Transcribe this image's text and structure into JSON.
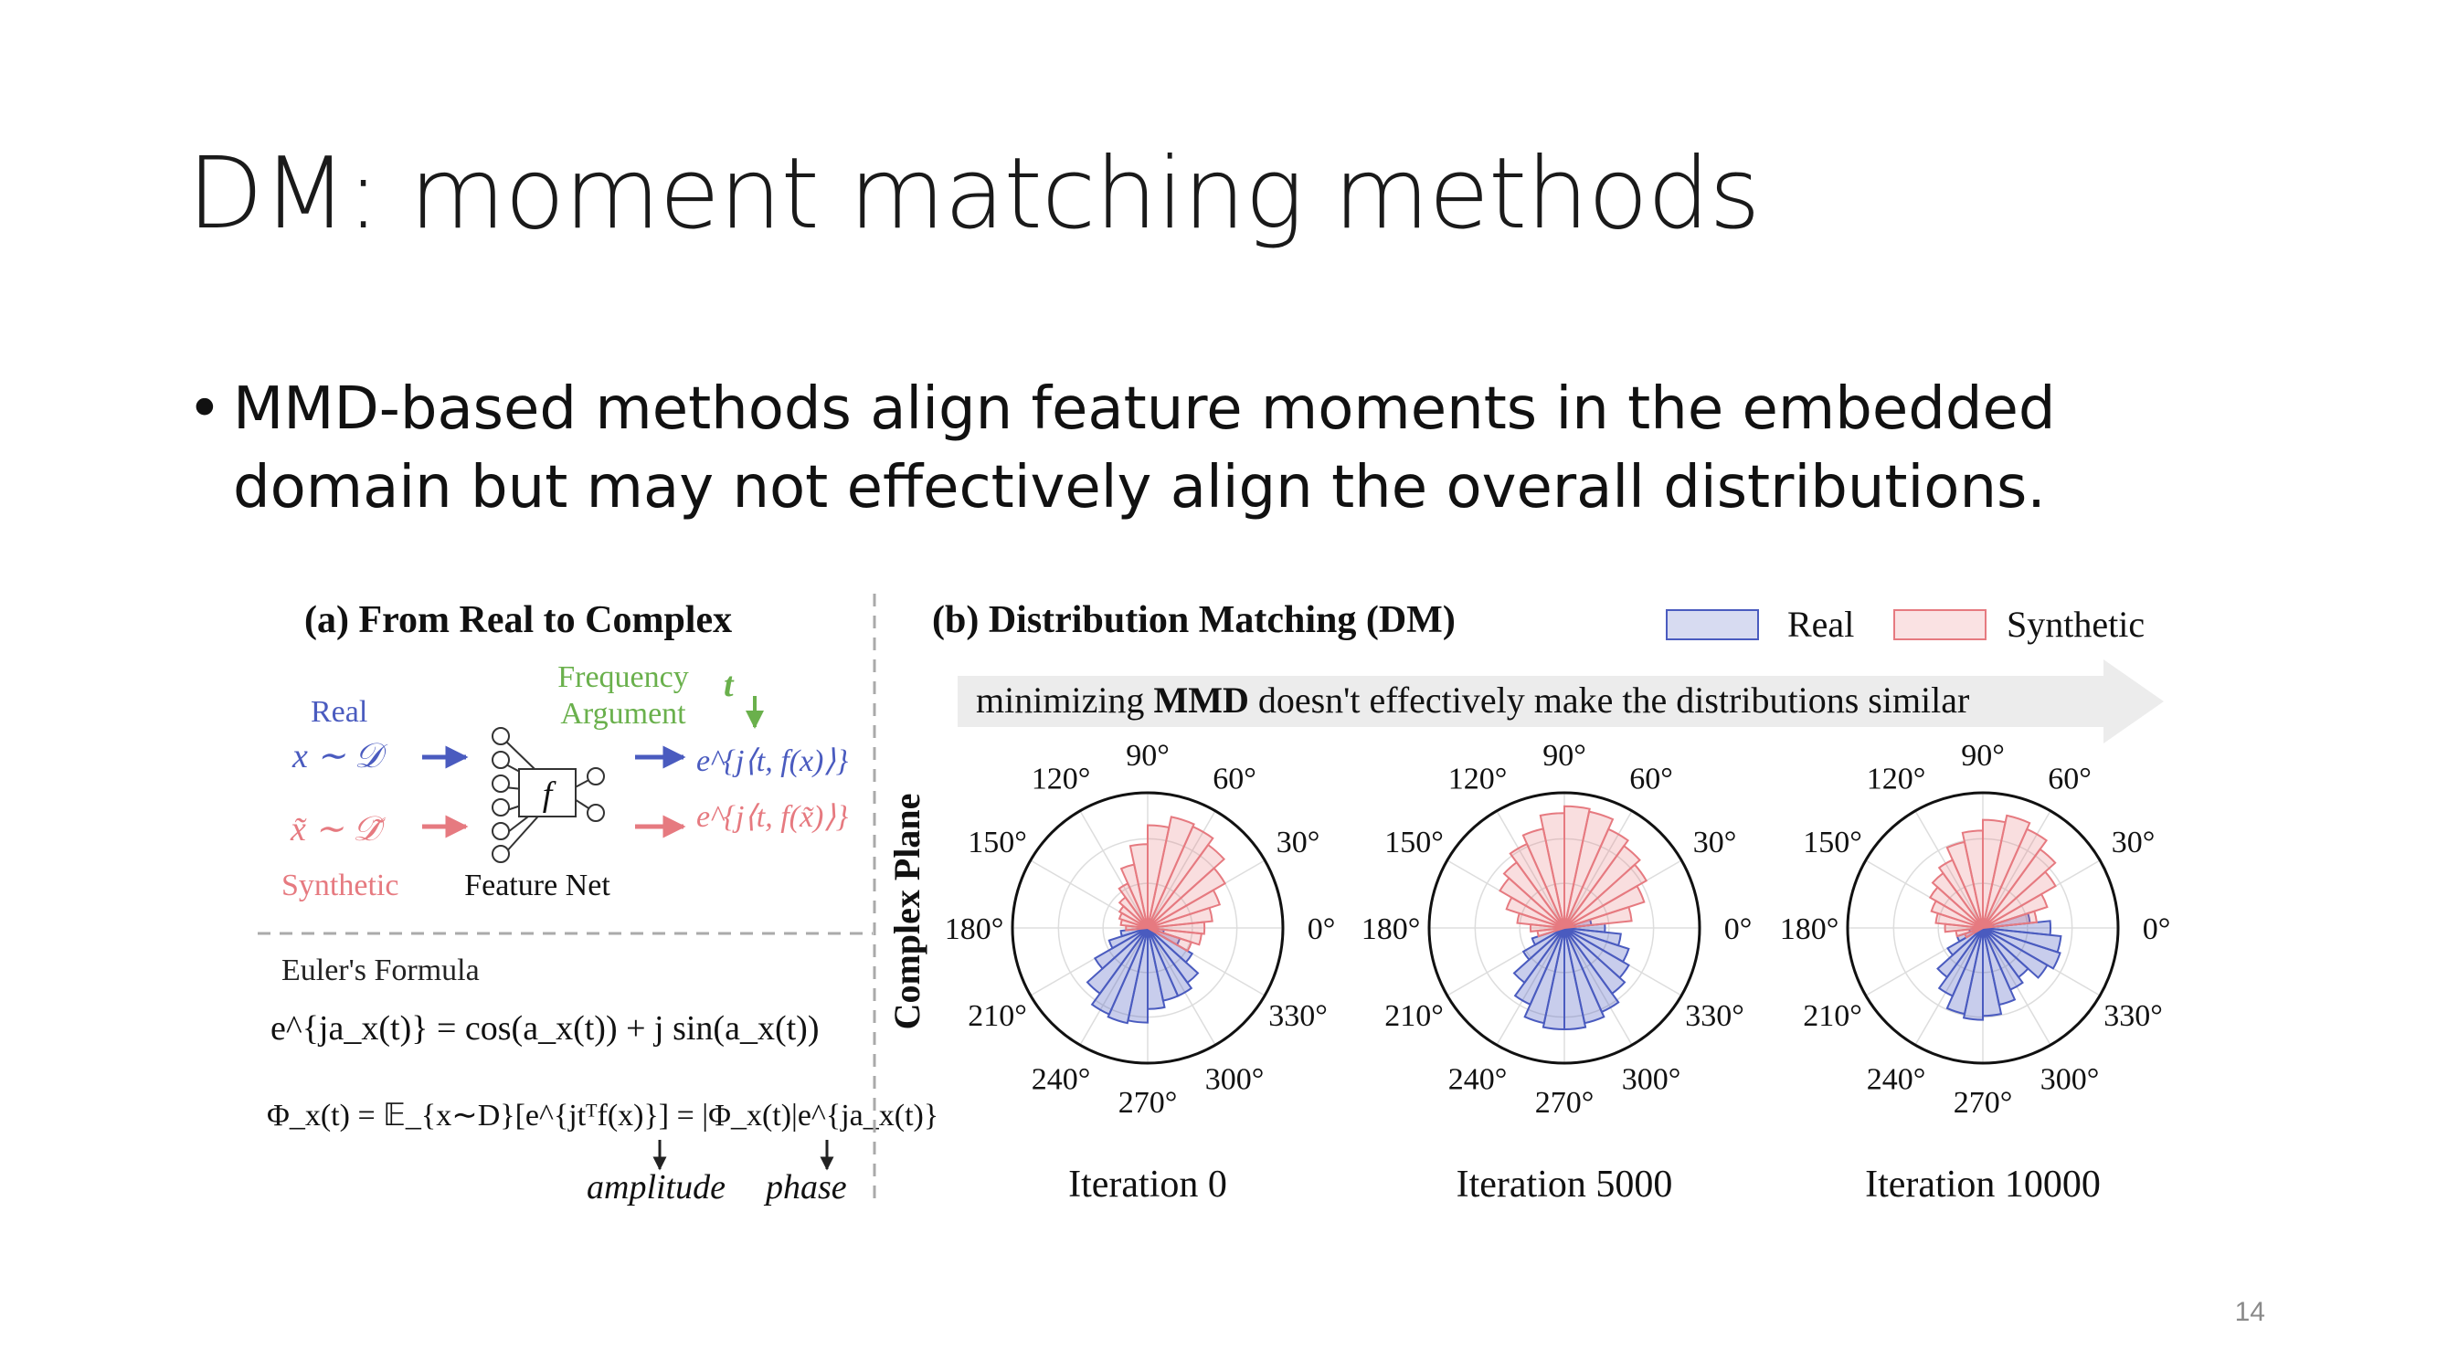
{
  "slide": {
    "title": "DM: moment matching methods",
    "bullet": "MMD-based methods align feature moments in the embedded domain but may not effectively align the overall distributions.",
    "page_number": "14"
  },
  "colors": {
    "real": "#4a5bbf",
    "synthetic": "#e67a80",
    "frequency": "#6ab04c"
  },
  "panel_a": {
    "title": "(a) From Real to Complex",
    "real_label": "Real",
    "real_sample": "x ∼ 𝒟",
    "synthetic_sample": "x̃ ∼ 𝒟̃",
    "synthetic_label": "Synthetic",
    "frequency_label_1": "Frequency",
    "frequency_label_2": "Argument",
    "t_symbol": "t",
    "f_symbol": "f",
    "feature_net_label": "Feature Net",
    "real_output": "e^{j⟨t, f(x)⟩}",
    "synthetic_output": "e^{j⟨t, f(x̃)⟩}",
    "euler_title": "Euler's Formula",
    "euler_formula": "e^{ja_x(t)} = cos(a_x(t)) + j sin(a_x(t))",
    "cf_formula": "Φ_x(t) = 𝔼_{x∼D}[e^{jtᵀf(x)}] = |Φ_x(t)|e^{ja_x(t)}",
    "amplitude_label": "amplitude",
    "phase_label": "phase"
  },
  "panel_b": {
    "title": "(b) Distribution Matching (DM)",
    "legend_real": "Real",
    "legend_synthetic": "Synthetic",
    "arrow_prefix": "minimizing ",
    "arrow_bold": "MMD",
    "arrow_suffix": " doesn't effectively make the distributions similar",
    "y_label": "Complex Plane",
    "angle_labels": [
      "0°",
      "30°",
      "60°",
      "90°",
      "120°",
      "150°",
      "180°",
      "210°",
      "240°",
      "270°",
      "300°",
      "330°"
    ]
  },
  "chart_data": [
    {
      "type": "polar-bar",
      "title": "Iteration 0",
      "bin_width_deg": 12,
      "series": [
        {
          "name": "Real",
          "bins": [
            {
              "angle": 192,
              "r": 0.2
            },
            {
              "angle": 204,
              "r": 0.3
            },
            {
              "angle": 216,
              "r": 0.45
            },
            {
              "angle": 228,
              "r": 0.6
            },
            {
              "angle": 240,
              "r": 0.7
            },
            {
              "angle": 252,
              "r": 0.72
            },
            {
              "angle": 264,
              "r": 0.7
            },
            {
              "angle": 276,
              "r": 0.6
            },
            {
              "angle": 288,
              "r": 0.55
            },
            {
              "angle": 300,
              "r": 0.55
            },
            {
              "angle": 312,
              "r": 0.5
            },
            {
              "angle": 324,
              "r": 0.38
            },
            {
              "angle": 336,
              "r": 0.25
            },
            {
              "angle": 348,
              "r": 0.12
            }
          ]
        },
        {
          "name": "Synthetic",
          "bins": [
            {
              "angle": 0,
              "r": 0.42
            },
            {
              "angle": 12,
              "r": 0.48
            },
            {
              "angle": 24,
              "r": 0.56
            },
            {
              "angle": 36,
              "r": 0.66
            },
            {
              "angle": 48,
              "r": 0.76
            },
            {
              "angle": 60,
              "r": 0.82
            },
            {
              "angle": 72,
              "r": 0.84
            },
            {
              "angle": 84,
              "r": 0.76
            },
            {
              "angle": 96,
              "r": 0.62
            },
            {
              "angle": 108,
              "r": 0.48
            },
            {
              "angle": 120,
              "r": 0.36
            },
            {
              "angle": 132,
              "r": 0.28
            },
            {
              "angle": 144,
              "r": 0.24
            },
            {
              "angle": 156,
              "r": 0.22
            },
            {
              "angle": 168,
              "r": 0.2
            },
            {
              "angle": 180,
              "r": 0.16
            },
            {
              "angle": 348,
              "r": 0.4
            },
            {
              "angle": 336,
              "r": 0.34
            }
          ]
        }
      ]
    },
    {
      "type": "polar-bar",
      "title": "Iteration 5000",
      "bin_width_deg": 12,
      "series": [
        {
          "name": "Real",
          "bins": [
            {
              "angle": 204,
              "r": 0.25
            },
            {
              "angle": 216,
              "r": 0.35
            },
            {
              "angle": 228,
              "r": 0.5
            },
            {
              "angle": 240,
              "r": 0.62
            },
            {
              "angle": 252,
              "r": 0.72
            },
            {
              "angle": 264,
              "r": 0.75
            },
            {
              "angle": 276,
              "r": 0.75
            },
            {
              "angle": 288,
              "r": 0.72
            },
            {
              "angle": 300,
              "r": 0.68
            },
            {
              "angle": 312,
              "r": 0.6
            },
            {
              "angle": 324,
              "r": 0.55
            },
            {
              "angle": 336,
              "r": 0.5
            },
            {
              "angle": 348,
              "r": 0.42
            },
            {
              "angle": 0,
              "r": 0.3
            },
            {
              "angle": 12,
              "r": 0.2
            }
          ]
        },
        {
          "name": "Synthetic",
          "bins": [
            {
              "angle": 12,
              "r": 0.5
            },
            {
              "angle": 24,
              "r": 0.62
            },
            {
              "angle": 36,
              "r": 0.7
            },
            {
              "angle": 48,
              "r": 0.75
            },
            {
              "angle": 60,
              "r": 0.8
            },
            {
              "angle": 72,
              "r": 0.88
            },
            {
              "angle": 84,
              "r": 0.9
            },
            {
              "angle": 96,
              "r": 0.85
            },
            {
              "angle": 108,
              "r": 0.75
            },
            {
              "angle": 120,
              "r": 0.68
            },
            {
              "angle": 132,
              "r": 0.6
            },
            {
              "angle": 144,
              "r": 0.55
            },
            {
              "angle": 156,
              "r": 0.45
            },
            {
              "angle": 168,
              "r": 0.35
            },
            {
              "angle": 180,
              "r": 0.25
            },
            {
              "angle": 192,
              "r": 0.2
            }
          ]
        }
      ]
    },
    {
      "type": "polar-bar",
      "title": "Iteration 10000",
      "bin_width_deg": 12,
      "series": [
        {
          "name": "Real",
          "bins": [
            {
              "angle": 192,
              "r": 0.1
            },
            {
              "angle": 204,
              "r": 0.2
            },
            {
              "angle": 216,
              "r": 0.3
            },
            {
              "angle": 228,
              "r": 0.45
            },
            {
              "angle": 240,
              "r": 0.55
            },
            {
              "angle": 252,
              "r": 0.65
            },
            {
              "angle": 264,
              "r": 0.68
            },
            {
              "angle": 276,
              "r": 0.65
            },
            {
              "angle": 288,
              "r": 0.58
            },
            {
              "angle": 300,
              "r": 0.5
            },
            {
              "angle": 312,
              "r": 0.45
            },
            {
              "angle": 324,
              "r": 0.55
            },
            {
              "angle": 336,
              "r": 0.6
            },
            {
              "angle": 348,
              "r": 0.58
            },
            {
              "angle": 0,
              "r": 0.5
            },
            {
              "angle": 12,
              "r": 0.35
            }
          ]
        },
        {
          "name": "Synthetic",
          "bins": [
            {
              "angle": 12,
              "r": 0.4
            },
            {
              "angle": 24,
              "r": 0.5
            },
            {
              "angle": 36,
              "r": 0.62
            },
            {
              "angle": 48,
              "r": 0.72
            },
            {
              "angle": 60,
              "r": 0.8
            },
            {
              "angle": 72,
              "r": 0.85
            },
            {
              "angle": 84,
              "r": 0.8
            },
            {
              "angle": 96,
              "r": 0.72
            },
            {
              "angle": 108,
              "r": 0.65
            },
            {
              "angle": 120,
              "r": 0.55
            },
            {
              "angle": 132,
              "r": 0.5
            },
            {
              "angle": 144,
              "r": 0.45
            },
            {
              "angle": 156,
              "r": 0.4
            },
            {
              "angle": 168,
              "r": 0.35
            },
            {
              "angle": 180,
              "r": 0.28
            },
            {
              "angle": 192,
              "r": 0.2
            },
            {
              "angle": 204,
              "r": 0.14
            }
          ]
        }
      ]
    }
  ]
}
